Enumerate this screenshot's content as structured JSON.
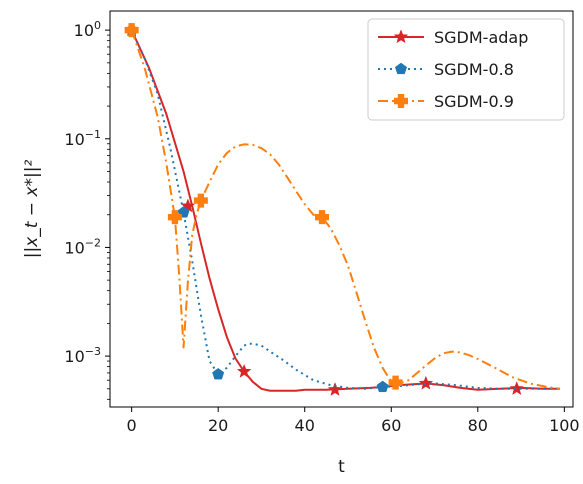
{
  "chart_data": {
    "type": "line",
    "title": "",
    "xlabel": "t",
    "ylabel": "||x_t − x*||²",
    "xlim": [
      -5,
      102
    ],
    "ylim": [
      0.00034,
      1.5
    ],
    "yscale": "log",
    "grid": false,
    "legend_position": "top-right",
    "x_ticks": [
      {
        "value": 0,
        "label": "0"
      },
      {
        "value": 20,
        "label": "20"
      },
      {
        "value": 40,
        "label": "40"
      },
      {
        "value": 60,
        "label": "60"
      },
      {
        "value": 80,
        "label": "80"
      },
      {
        "value": 100,
        "label": "100"
      }
    ],
    "y_ticks": [
      {
        "value": 1,
        "base": "10",
        "exp": "0"
      },
      {
        "value": 0.1,
        "base": "10",
        "exp": "−1"
      },
      {
        "value": 0.01,
        "base": "10",
        "exp": "−2"
      },
      {
        "value": 0.001,
        "base": "10",
        "exp": "−3"
      }
    ],
    "series": [
      {
        "name": "SGDM-adap",
        "color": "#d62728",
        "dash": "solid",
        "marker": "star",
        "x": [
          0,
          4,
          8,
          12,
          14,
          16,
          18,
          20,
          22,
          24,
          26,
          28,
          30,
          32,
          35,
          38,
          40,
          45,
          50,
          55,
          58,
          62,
          65,
          68,
          72,
          76,
          80,
          85,
          90,
          95,
          99
        ],
        "y": [
          1.0,
          0.45,
          0.17,
          0.05,
          0.024,
          0.011,
          0.0052,
          0.0027,
          0.0015,
          0.00095,
          0.00072,
          0.00058,
          0.0005,
          0.00048,
          0.00048,
          0.00048,
          0.00049,
          0.00049,
          0.0005,
          0.00051,
          0.00052,
          0.00054,
          0.00055,
          0.00056,
          0.00054,
          0.00051,
          0.00049,
          0.0005,
          0.00051,
          0.0005,
          0.0005
        ],
        "marker_x": [
          0,
          13,
          26,
          47,
          68,
          89
        ],
        "marker_y": [
          1.0,
          0.024,
          0.00072,
          0.00049,
          0.00056,
          0.0005
        ]
      },
      {
        "name": "SGDM-0.8",
        "color": "#1f77b4",
        "dash": "dotted",
        "marker": "pentagon",
        "x": [
          0,
          3,
          6,
          9,
          12,
          14,
          16,
          18,
          20,
          22,
          24,
          26,
          27,
          28,
          30,
          32,
          35,
          38,
          42,
          46,
          50,
          54,
          58,
          62,
          66,
          70,
          75,
          80,
          85,
          90,
          95,
          99
        ],
        "y": [
          1.0,
          0.55,
          0.26,
          0.08,
          0.021,
          0.0075,
          0.0024,
          0.0009,
          0.00068,
          0.00078,
          0.001,
          0.00125,
          0.0013,
          0.0013,
          0.00125,
          0.0011,
          0.00092,
          0.00075,
          0.0006,
          0.00054,
          0.00051,
          0.0005,
          0.00052,
          0.00053,
          0.00055,
          0.00056,
          0.00054,
          0.00051,
          0.0005,
          0.0005,
          0.0005,
          0.0005
        ],
        "marker_x": [
          0,
          12,
          20,
          58
        ],
        "marker_y": [
          1.0,
          0.021,
          0.00068,
          0.00052
        ]
      },
      {
        "name": "SGDM-0.9",
        "color": "#ff7f0e",
        "dash": "dashdot",
        "marker": "plus",
        "x": [
          0,
          3,
          6,
          8,
          10,
          11,
          12,
          13,
          14,
          15,
          16,
          18,
          20,
          22,
          24,
          26,
          28,
          30,
          32,
          34,
          36,
          38,
          40,
          42,
          44,
          46,
          48,
          50,
          52,
          54,
          56,
          58,
          60,
          62,
          64,
          66,
          68,
          70,
          72,
          74,
          76,
          78,
          80,
          84,
          88,
          92,
          96,
          99
        ],
        "y": [
          1.0,
          0.45,
          0.16,
          0.06,
          0.019,
          0.0055,
          0.0012,
          0.0048,
          0.013,
          0.02,
          0.027,
          0.04,
          0.058,
          0.074,
          0.085,
          0.089,
          0.088,
          0.082,
          0.072,
          0.058,
          0.044,
          0.033,
          0.025,
          0.02,
          0.019,
          0.015,
          0.0105,
          0.0068,
          0.0038,
          0.0021,
          0.0012,
          0.00078,
          0.00058,
          0.00056,
          0.0006,
          0.0007,
          0.00082,
          0.00095,
          0.00106,
          0.0011,
          0.00108,
          0.00102,
          0.00094,
          0.00078,
          0.00064,
          0.00056,
          0.00052,
          0.0005
        ],
        "marker_x": [
          0,
          10,
          16,
          44,
          61
        ],
        "marker_y": [
          1.0,
          0.019,
          0.027,
          0.019,
          0.00057
        ]
      }
    ]
  }
}
